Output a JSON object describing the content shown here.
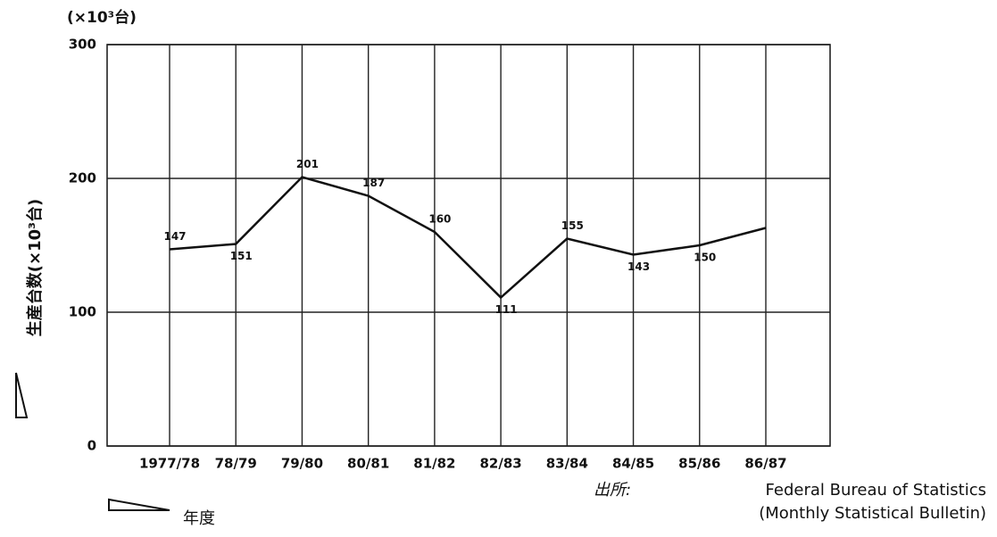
{
  "chart_data": {
    "type": "line",
    "unit_label": "(×10³台)",
    "y_label": "生産台数(×10³台)",
    "x_label": "年度",
    "source_label": "出所:",
    "source_lines": [
      "Federal Bureau of Statistics",
      "(Monthly Statistical Bulletin)"
    ],
    "categories": [
      "1977/78",
      "78/79",
      "79/80",
      "80/81",
      "81/82",
      "82/83",
      "83/84",
      "84/85",
      "85/86",
      "86/87"
    ],
    "values": [
      147,
      151,
      201,
      187,
      160,
      111,
      155,
      143,
      150,
      163
    ],
    "value_labels": [
      "147",
      "151",
      "201",
      "187",
      "160",
      "111",
      "155",
      "143",
      "150",
      null
    ],
    "color": "#111111",
    "ylim": [
      0,
      300
    ],
    "yticks": [
      0,
      100,
      200,
      300
    ],
    "grid": true
  }
}
